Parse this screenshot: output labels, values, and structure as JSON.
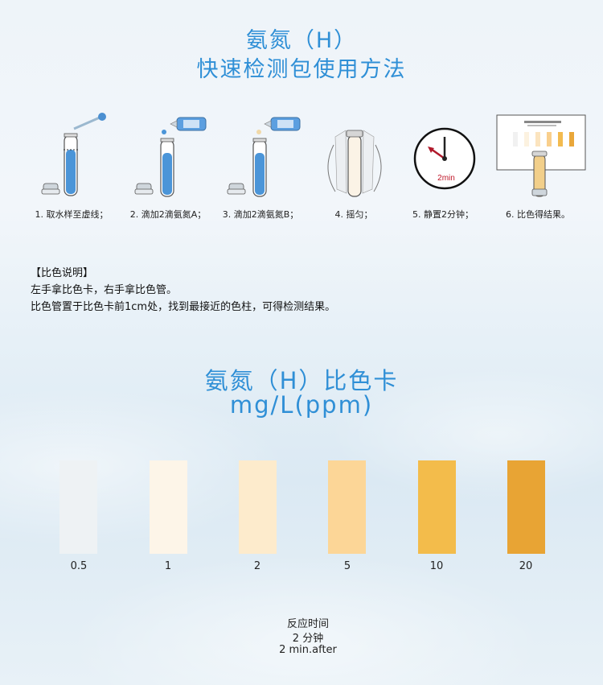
{
  "header": {
    "title_line1": "氨氮（H）",
    "title_line2": "快速检测包使用方法"
  },
  "steps": [
    {
      "caption": "1. 取水样至虚线；",
      "icon": "test-tube-dropper-icon"
    },
    {
      "caption": "2. 滴加2滴氨氮A；",
      "icon": "reagent-a-bottle-icon"
    },
    {
      "caption": "3. 滴加2滴氨氮B；",
      "icon": "reagent-b-bottle-icon"
    },
    {
      "caption": "4. 摇匀；",
      "icon": "shake-tube-icon"
    },
    {
      "caption": "5. 静置2分钟；",
      "icon": "clock-icon",
      "clock_label": "2min"
    },
    {
      "caption": "6. 比色得结果。",
      "icon": "color-card-compare-icon"
    }
  ],
  "description": {
    "heading": "【比色说明】",
    "line1": "左手拿比色卡，右手拿比色管。",
    "line2": "比色管置于比色卡前1cm处，找到最接近的色柱，可得检测结果。"
  },
  "color_card": {
    "title_line1": "氨氮（H）比色卡",
    "title_line2": "mg/L(ppm)",
    "swatches": [
      {
        "value": "0.5",
        "color": "#eef2f4"
      },
      {
        "value": "1",
        "color": "#fdf5e8"
      },
      {
        "value": "2",
        "color": "#fdebcc"
      },
      {
        "value": "5",
        "color": "#fcd697"
      },
      {
        "value": "10",
        "color": "#f3bc4b"
      },
      {
        "value": "20",
        "color": "#e8a434"
      }
    ]
  },
  "footer": {
    "line1": "反应时间",
    "line2": "2 分钟",
    "line3": "2 min.after"
  }
}
